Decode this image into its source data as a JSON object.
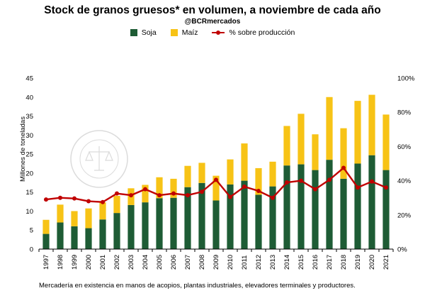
{
  "chart_data": {
    "type": "bar",
    "title": "Stock de granos gruesos*  en volumen, a noviembre de cada año",
    "subtitle": "@BCRmercados",
    "ylabel": "Millones de toneladas",
    "note": "Mercadería en existencia en manos de acopios, plantas industriales, elevadores terminales y productores.",
    "watermark": "BOLSA DE COMERCIO DE ROSARIO",
    "stacked": true,
    "ylim": [
      0,
      45
    ],
    "y_ticks": [
      0,
      5,
      10,
      15,
      20,
      25,
      30,
      35,
      40,
      45
    ],
    "y2lim": [
      0,
      100
    ],
    "y2_ticks": [
      "0%",
      "20%",
      "40%",
      "60%",
      "80%",
      "100%"
    ],
    "categories": [
      "1997",
      "1998",
      "1999",
      "2000",
      "2001",
      "2002",
      "2003",
      "2004",
      "2005",
      "2006",
      "2007",
      "2008",
      "2009",
      "2010",
      "2011",
      "2012",
      "2013",
      "2014",
      "2015",
      "2016",
      "2017",
      "2018",
      "2019",
      "2020",
      "2021"
    ],
    "series": [
      {
        "name": "Soja",
        "color": "#1e5c35",
        "values": [
          4.0,
          7.0,
          6.0,
          5.5,
          7.8,
          9.5,
          11.6,
          12.3,
          13.4,
          13.5,
          16.3,
          17.4,
          12.8,
          17.0,
          18.0,
          14.3,
          16.5,
          22.0,
          22.3,
          20.8,
          23.5,
          18.5,
          22.5,
          24.7,
          20.8
        ]
      },
      {
        "name": "Maíz",
        "color": "#f7c316",
        "values": [
          3.7,
          4.7,
          4.0,
          5.2,
          4.5,
          4.5,
          4.4,
          4.6,
          5.5,
          5.0,
          5.6,
          5.3,
          6.5,
          6.6,
          9.8,
          7.0,
          6.5,
          10.4,
          13.3,
          9.4,
          16.5,
          13.3,
          16.5,
          15.9,
          14.6
        ]
      }
    ],
    "line": {
      "name": "% sobre producción",
      "color": "#c00000",
      "values": [
        29,
        30,
        29.6,
        28,
        27.5,
        32.5,
        31.5,
        35,
        31.5,
        32.5,
        31.5,
        33.5,
        40.5,
        30.5,
        36.5,
        34,
        30,
        39,
        40,
        35,
        40.5,
        47.5,
        36,
        39.5,
        36
      ]
    }
  }
}
